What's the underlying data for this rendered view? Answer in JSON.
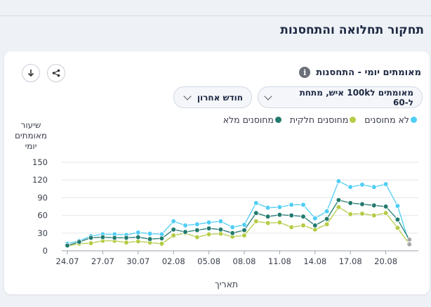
{
  "page": {
    "section_title": "תחקור תחלואה והתחסנות"
  },
  "card": {
    "title": "מאומתים יומי - התחסנות",
    "info_icon": "i",
    "share_icon": "share-icon",
    "download_icon": "download-icon",
    "dropdown_metric": "מאומתים ל100k איש, מתחת ל-60",
    "dropdown_period": "חודש אחרון"
  },
  "colors": {
    "unvaccinated": "#50cef5",
    "partial": "#b4cc46",
    "full": "#237a6e"
  },
  "chart_data": {
    "type": "line",
    "xlabel": "תאריך",
    "ylabel": "שיעור מאומתים יומי",
    "ylim": [
      0,
      150
    ],
    "yticks": [
      0,
      30,
      60,
      90,
      120,
      150
    ],
    "grid": true,
    "legend_position": "top-right",
    "x": [
      "24.07",
      "25.07",
      "26.07",
      "27.07",
      "28.07",
      "29.07",
      "30.07",
      "31.07",
      "01.08",
      "02.08",
      "03.08",
      "04.08",
      "05.08",
      "06.08",
      "07.08",
      "08.08",
      "09.08",
      "10.08",
      "11.08",
      "12.08",
      "13.08",
      "14.08",
      "15.08",
      "16.08",
      "17.08",
      "18.08",
      "19.08",
      "20.08",
      "21.08",
      "22.08"
    ],
    "xtick_labels": [
      "24.07",
      "27.07",
      "30.07",
      "02.08",
      "05.08",
      "08.08",
      "11.08",
      "14.08",
      "17.08",
      "20.08"
    ],
    "series": [
      {
        "name": "לא מחוסנים",
        "key": "unvaccinated",
        "values": [
          12,
          17,
          25,
          28,
          28,
          27,
          31,
          29,
          28,
          50,
          43,
          45,
          48,
          50,
          40,
          44,
          81,
          73,
          74,
          78,
          78,
          55,
          67,
          118,
          108,
          112,
          108,
          113,
          76,
          12
        ]
      },
      {
        "name": "מחוסנים חלקית",
        "key": "partial",
        "values": [
          8,
          12,
          13,
          17,
          17,
          14,
          16,
          14,
          12,
          26,
          30,
          23,
          28,
          29,
          24,
          26,
          50,
          47,
          48,
          40,
          43,
          36,
          45,
          74,
          62,
          63,
          60,
          64,
          39,
          11
        ]
      },
      {
        "name": "מחוסנים מלא",
        "key": "full",
        "values": [
          9,
          15,
          22,
          23,
          22,
          22,
          23,
          20,
          21,
          36,
          32,
          35,
          38,
          36,
          30,
          35,
          64,
          58,
          61,
          60,
          58,
          43,
          54,
          86,
          81,
          79,
          77,
          75,
          53,
          19
        ]
      }
    ]
  }
}
